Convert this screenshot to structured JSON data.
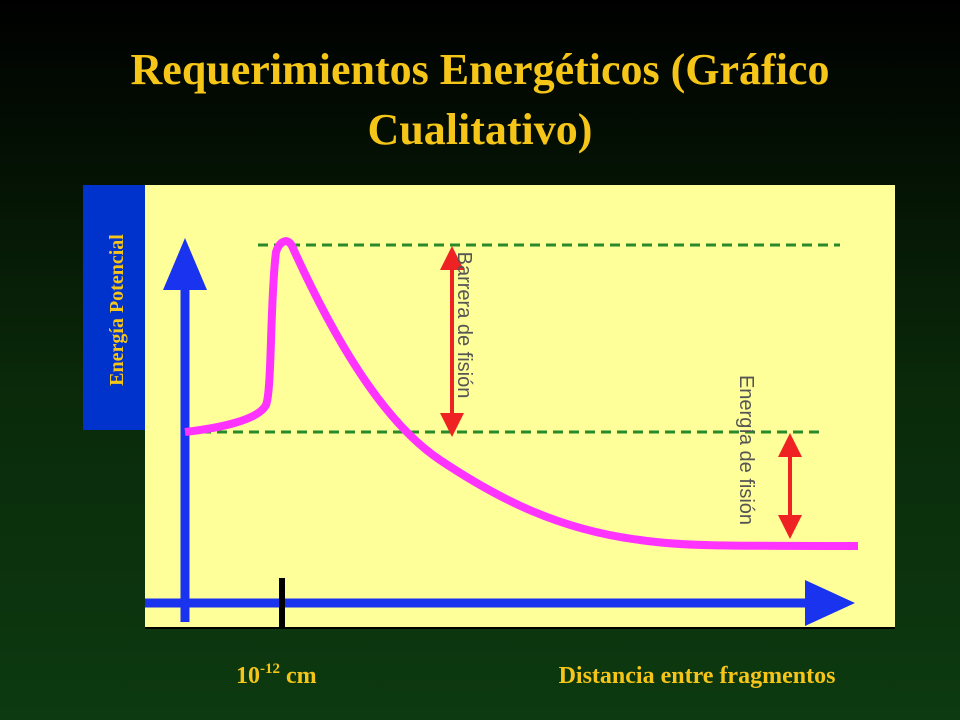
{
  "title": [
    "Requerimientos Energéticos (Gráfico",
    "Cualitativo)"
  ],
  "y_axis_label": "Energía Potencial",
  "annotations": {
    "barrier": "Barrera de fisión",
    "energy": "Energía de fisión"
  },
  "x_marker": {
    "base": "10",
    "exponent": "-12",
    "unit": "cm"
  },
  "x_axis_label": "Distancia entre fragmentos"
}
